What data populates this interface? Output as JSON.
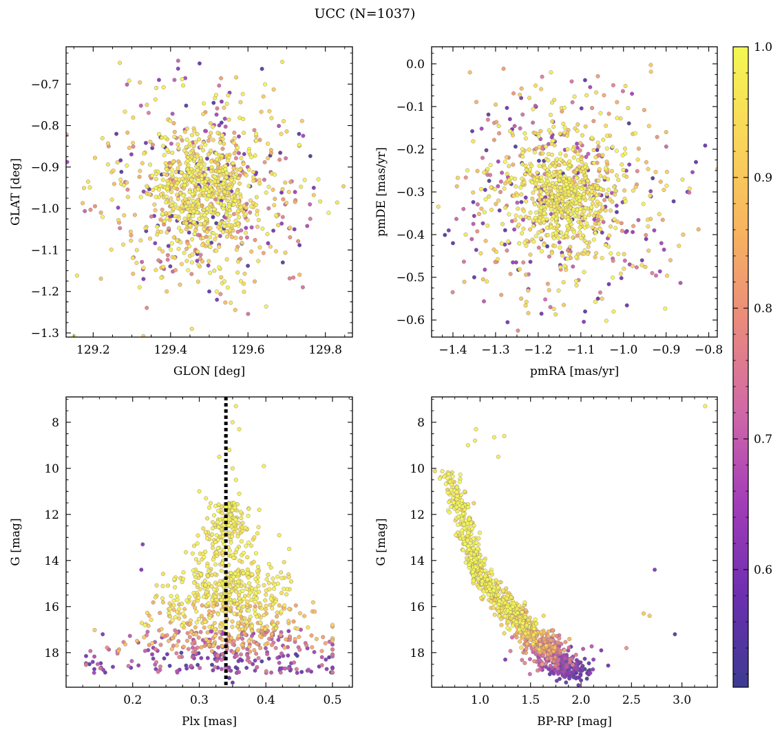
{
  "figure": {
    "suptitle": "UCC (N=1037)",
    "background": "#ffffff",
    "marker_edge_color": "#777777",
    "membership_marker": {
      "color": "#000000",
      "style": "dotted"
    }
  },
  "colorbar": {
    "colormap": "plasma",
    "vmin": 0.51,
    "vmax": 1.0,
    "stops": [
      "#3d3b91",
      "#6c2fb0",
      "#a23cb8",
      "#d068a8",
      "#ea8a7c",
      "#f8b45f",
      "#f9d65a",
      "#f4f752"
    ],
    "ticks": [
      0.6,
      0.7,
      0.8,
      0.9,
      1.0
    ],
    "tick_labels": [
      "0.6",
      "0.7",
      "0.8",
      "0.9",
      "1.0"
    ]
  },
  "chart_data": [
    {
      "type": "scatter",
      "id": "lonlat",
      "xlabel": "GLON [deg]",
      "ylabel": "GLAT [deg]",
      "xlim": [
        129.13,
        129.87
      ],
      "ylim": [
        -1.31,
        -0.61
      ],
      "y_inverted": false,
      "xticks": [
        129.2,
        129.4,
        129.6,
        129.8
      ],
      "xtick_labels": [
        "129.2",
        "129.4",
        "129.6",
        "129.8"
      ],
      "yticks": [
        -1.3,
        -1.2,
        -1.1,
        -1.0,
        -0.9,
        -0.8,
        -0.7
      ],
      "ytick_labels": [
        "−1.3",
        "−1.2",
        "−1.1",
        "−1.0",
        "−0.9",
        "−0.8",
        "−0.7"
      ],
      "cloud": {
        "cx": 129.49,
        "cy": -0.955,
        "sx_core": 0.06,
        "sy_core": 0.06,
        "sx_halo": 0.13,
        "sy_halo": 0.12,
        "n_core": 420,
        "n_halo": 617
      },
      "points": [
        {
          "x": 129.77,
          "y": -0.95,
          "p": 0.6
        },
        {
          "x": 129.76,
          "y": -0.99,
          "p": 0.7
        },
        {
          "x": 129.22,
          "y": -1.01,
          "p": 0.85
        },
        {
          "x": 129.24,
          "y": -0.85,
          "p": 0.8
        },
        {
          "x": 129.37,
          "y": -0.69,
          "p": 0.62
        },
        {
          "x": 129.41,
          "y": -0.69,
          "p": 0.7
        },
        {
          "x": 129.64,
          "y": -0.73,
          "p": 0.9
        },
        {
          "x": 129.52,
          "y": -1.22,
          "p": 0.6
        },
        {
          "x": 129.39,
          "y": -1.2,
          "p": 0.9
        },
        {
          "x": 129.32,
          "y": -1.19,
          "p": 0.98
        },
        {
          "x": 129.33,
          "y": -1.17,
          "p": 0.6
        },
        {
          "x": 129.5,
          "y": -1.2,
          "p": 0.55
        },
        {
          "x": 129.72,
          "y": -1.05,
          "p": 0.6
        },
        {
          "x": 129.26,
          "y": -0.82,
          "p": 0.55
        },
        {
          "x": 129.69,
          "y": -1.13,
          "p": 0.55
        }
      ]
    },
    {
      "type": "scatter",
      "id": "pm",
      "xlabel": "pmRA [mas/yr]",
      "ylabel": "pmDE [mas/yr]",
      "xlim": [
        -1.45,
        -0.78
      ],
      "ylim": [
        -0.64,
        0.04
      ],
      "y_inverted": false,
      "xticks": [
        -1.4,
        -1.3,
        -1.2,
        -1.1,
        -1.0,
        -0.9,
        -0.8
      ],
      "xtick_labels": [
        "−1.4",
        "−1.3",
        "−1.2",
        "−1.1",
        "−1.0",
        "−0.9",
        "−0.8"
      ],
      "yticks": [
        -0.6,
        -0.5,
        -0.4,
        -0.3,
        -0.2,
        -0.1,
        0.0
      ],
      "ytick_labels": [
        "−0.6",
        "−0.5",
        "−0.4",
        "−0.3",
        "−0.2",
        "−0.1",
        "0.0"
      ],
      "cloud": {
        "cx": -1.14,
        "cy": -0.31,
        "sx_core": 0.05,
        "sy_core": 0.06,
        "sx_halo": 0.12,
        "sy_halo": 0.12,
        "n_core": 420,
        "n_halo": 617
      },
      "points": [
        {
          "x": -1.36,
          "y": -0.02,
          "p": 0.88
        },
        {
          "x": -1.17,
          "y": -0.02,
          "p": 0.98
        },
        {
          "x": -1.41,
          "y": -0.39,
          "p": 0.6
        },
        {
          "x": -1.4,
          "y": -0.42,
          "p": 0.55
        },
        {
          "x": -1.35,
          "y": -0.5,
          "p": 0.55
        },
        {
          "x": -0.83,
          "y": -0.23,
          "p": 0.55
        },
        {
          "x": -0.85,
          "y": -0.3,
          "p": 0.6
        },
        {
          "x": -0.86,
          "y": -0.4,
          "p": 0.9
        },
        {
          "x": -1.09,
          "y": -0.58,
          "p": 0.55
        },
        {
          "x": -1.06,
          "y": -0.55,
          "p": 0.55
        },
        {
          "x": -1.24,
          "y": -0.55,
          "p": 0.88
        },
        {
          "x": -0.9,
          "y": -0.16,
          "p": 0.88
        },
        {
          "x": -0.98,
          "y": -0.07,
          "p": 0.65
        },
        {
          "x": -1.24,
          "y": -0.08,
          "p": 0.6
        },
        {
          "x": -0.89,
          "y": -0.46,
          "p": 0.88
        }
      ]
    },
    {
      "type": "scatter",
      "id": "plx",
      "xlabel": "Plx [mas]",
      "ylabel": "G [mag]",
      "xlim": [
        0.1,
        0.53
      ],
      "ylim": [
        19.5,
        6.9
      ],
      "y_inverted": true,
      "membership_line_x": 0.34,
      "xticks": [
        0.2,
        0.3,
        0.4,
        0.5
      ],
      "xtick_labels": [
        "0.2",
        "0.3",
        "0.4",
        "0.5"
      ],
      "yticks": [
        8,
        10,
        12,
        14,
        16,
        18
      ],
      "ytick_labels": [
        "8",
        "10",
        "12",
        "14",
        "16",
        "18"
      ],
      "points": [
        {
          "x": 0.355,
          "y": 7.3,
          "p": 0.98
        },
        {
          "x": 0.35,
          "y": 8.0,
          "p": 0.98
        },
        {
          "x": 0.36,
          "y": 8.3,
          "p": 0.98
        },
        {
          "x": 0.34,
          "y": 8.6,
          "p": 0.98
        },
        {
          "x": 0.345,
          "y": 9.2,
          "p": 0.98
        },
        {
          "x": 0.33,
          "y": 9.5,
          "p": 0.98
        },
        {
          "x": 0.397,
          "y": 9.9,
          "p": 0.98
        },
        {
          "x": 0.35,
          "y": 10.0,
          "p": 0.98
        },
        {
          "x": 0.355,
          "y": 10.5,
          "p": 0.98
        },
        {
          "x": 0.3,
          "y": 11.0,
          "p": 0.98
        },
        {
          "x": 0.31,
          "y": 11.3,
          "p": 0.98
        },
        {
          "x": 0.35,
          "y": 11.5,
          "p": 0.98
        },
        {
          "x": 0.36,
          "y": 11.1,
          "p": 0.98
        },
        {
          "x": 0.315,
          "y": 11.7,
          "p": 0.98
        },
        {
          "x": 0.39,
          "y": 11.8,
          "p": 0.98
        },
        {
          "x": 0.215,
          "y": 13.3,
          "p": 0.62
        },
        {
          "x": 0.213,
          "y": 14.4,
          "p": 0.6
        },
        {
          "x": 0.435,
          "y": 13.5,
          "p": 0.98
        },
        {
          "x": 0.42,
          "y": 12.9,
          "p": 0.98
        },
        {
          "x": 0.135,
          "y": 18.5,
          "p": 0.55
        },
        {
          "x": 0.14,
          "y": 18.4,
          "p": 0.6
        },
        {
          "x": 0.155,
          "y": 17.2,
          "p": 0.6
        },
        {
          "x": 0.495,
          "y": 18.2,
          "p": 0.55
        },
        {
          "x": 0.49,
          "y": 18.3,
          "p": 0.6
        },
        {
          "x": 0.48,
          "y": 18.6,
          "p": 0.6
        },
        {
          "x": 0.35,
          "y": 19.3,
          "p": 0.55
        },
        {
          "x": 0.345,
          "y": 19.1,
          "p": 0.55
        }
      ]
    },
    {
      "type": "scatter",
      "id": "cmd",
      "xlabel": "BP-RP [mag]",
      "ylabel": "G [mag]",
      "xlim": [
        0.52,
        3.35
      ],
      "ylim": [
        19.5,
        6.9
      ],
      "y_inverted": true,
      "xticks": [
        1.0,
        1.5,
        2.0,
        2.5,
        3.0
      ],
      "xtick_labels": [
        "1.0",
        "1.5",
        "2.0",
        "2.5",
        "3.0"
      ],
      "yticks": [
        8,
        10,
        12,
        14,
        16,
        18
      ],
      "ytick_labels": [
        "8",
        "10",
        "12",
        "14",
        "16",
        "18"
      ],
      "sequence": [
        [
          0.65,
          10.0,
          0.98
        ],
        [
          0.8,
          11.5,
          0.98
        ],
        [
          0.88,
          13.0,
          0.98
        ],
        [
          0.95,
          14.2,
          0.98
        ],
        [
          1.05,
          15.1,
          0.97
        ],
        [
          1.2,
          15.8,
          0.96
        ],
        [
          1.35,
          16.4,
          0.95
        ],
        [
          1.5,
          17.0,
          0.9
        ],
        [
          1.62,
          17.6,
          0.82
        ],
        [
          1.72,
          18.1,
          0.7
        ],
        [
          1.85,
          18.6,
          0.6
        ],
        [
          1.95,
          18.9,
          0.55
        ]
      ],
      "points": [
        {
          "x": 3.23,
          "y": 7.3,
          "p": 0.98
        },
        {
          "x": 0.96,
          "y": 8.3,
          "p": 0.98
        },
        {
          "x": 1.24,
          "y": 8.6,
          "p": 0.98
        },
        {
          "x": 1.14,
          "y": 8.65,
          "p": 0.98
        },
        {
          "x": 0.88,
          "y": 9.0,
          "p": 0.98
        },
        {
          "x": 0.95,
          "y": 8.8,
          "p": 0.98
        },
        {
          "x": 1.18,
          "y": 9.5,
          "p": 0.98
        },
        {
          "x": 2.73,
          "y": 14.4,
          "p": 0.6
        },
        {
          "x": 2.62,
          "y": 16.3,
          "p": 0.9
        },
        {
          "x": 2.68,
          "y": 16.4,
          "p": 0.9
        },
        {
          "x": 2.93,
          "y": 17.2,
          "p": 0.55
        },
        {
          "x": 2.45,
          "y": 17.8,
          "p": 0.8
        },
        {
          "x": 2.2,
          "y": 17.9,
          "p": 0.6
        },
        {
          "x": 1.25,
          "y": 18.3,
          "p": 0.6
        },
        {
          "x": 2.0,
          "y": 19.2,
          "p": 0.55
        }
      ]
    }
  ]
}
